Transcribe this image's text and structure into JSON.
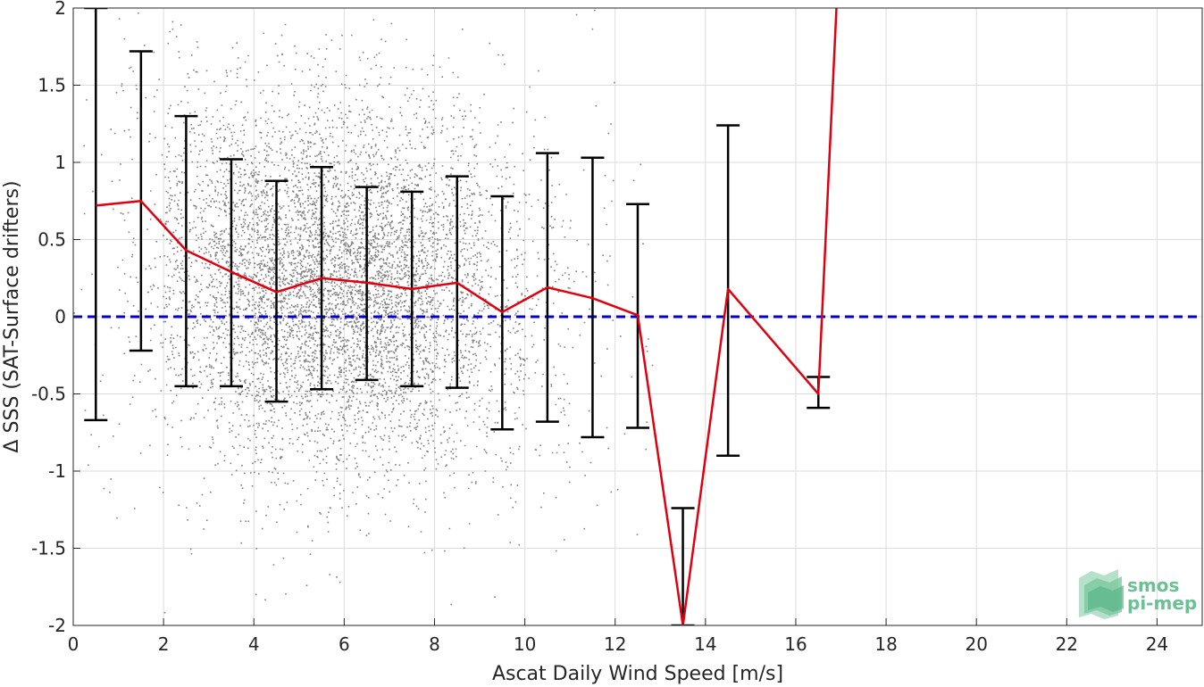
{
  "chart_data": {
    "type": "scatter",
    "xlabel": "Ascat Daily Wind Speed [m/s]",
    "ylabel": "Δ SSS (SAT-Surface drifters)",
    "xlim": [
      0,
      25
    ],
    "ylim": [
      -2,
      2
    ],
    "xticks": [
      0,
      2,
      4,
      6,
      8,
      10,
      12,
      14,
      16,
      18,
      20,
      22,
      24
    ],
    "yticks": [
      -2,
      -1.5,
      -1,
      -0.5,
      0,
      0.5,
      1,
      1.5,
      2
    ],
    "xtick_labels": [
      "0",
      "2",
      "4",
      "6",
      "8",
      "10",
      "12",
      "14",
      "16",
      "18",
      "20",
      "22",
      "24"
    ],
    "ytick_labels": [
      "-2",
      "-1.5",
      "-1",
      "-0.5",
      "0",
      "0.5",
      "1",
      "1.5",
      "2"
    ],
    "grid": true,
    "series": [
      {
        "kind": "scatter",
        "color": "#808080",
        "density_bins": [
          {
            "x": 0.5,
            "mean": 0.3,
            "sd": 0.9,
            "n": 30
          },
          {
            "x": 1.5,
            "mean": 0.45,
            "sd": 0.7,
            "n": 120
          },
          {
            "x": 2.5,
            "mean": 0.35,
            "sd": 0.65,
            "n": 450
          },
          {
            "x": 3.5,
            "mean": 0.25,
            "sd": 0.6,
            "n": 800
          },
          {
            "x": 4.5,
            "mean": 0.2,
            "sd": 0.6,
            "n": 1100
          },
          {
            "x": 5.5,
            "mean": 0.2,
            "sd": 0.62,
            "n": 1300
          },
          {
            "x": 6.5,
            "mean": 0.2,
            "sd": 0.58,
            "n": 1300
          },
          {
            "x": 7.5,
            "mean": 0.18,
            "sd": 0.58,
            "n": 1000
          },
          {
            "x": 8.5,
            "mean": 0.18,
            "sd": 0.6,
            "n": 600
          },
          {
            "x": 9.5,
            "mean": 0.1,
            "sd": 0.65,
            "n": 300
          },
          {
            "x": 10.5,
            "mean": 0.15,
            "sd": 0.7,
            "n": 130
          },
          {
            "x": 11.5,
            "mean": 0.1,
            "sd": 0.8,
            "n": 45
          },
          {
            "x": 12.5,
            "mean": 0.0,
            "sd": 0.6,
            "n": 15
          }
        ]
      },
      {
        "kind": "errorbar",
        "color": "#000000",
        "x": [
          0.5,
          1.5,
          2.5,
          3.5,
          4.5,
          5.5,
          6.5,
          7.5,
          8.5,
          9.5,
          10.5,
          11.5,
          12.5,
          13.5,
          14.5,
          16.5
        ],
        "lower": [
          -0.67,
          -0.22,
          -0.45,
          -0.45,
          -0.55,
          -0.47,
          -0.41,
          -0.45,
          -0.46,
          -0.73,
          -0.68,
          -0.78,
          -0.72,
          -2.0,
          -0.9,
          -0.59
        ],
        "upper": [
          2.0,
          1.72,
          1.3,
          1.02,
          0.88,
          0.97,
          0.84,
          0.81,
          0.91,
          0.78,
          1.06,
          1.03,
          0.73,
          -1.24,
          1.24,
          -0.39
        ]
      },
      {
        "kind": "line",
        "color": "#e0000f",
        "x": [
          0.5,
          1.5,
          2.5,
          3.5,
          4.5,
          5.5,
          6.5,
          7.5,
          8.5,
          9.5,
          10.5,
          11.5,
          12.5,
          13.5,
          14.5,
          16.5,
          16.9
        ],
        "y": [
          0.72,
          0.75,
          0.43,
          0.29,
          0.16,
          0.25,
          0.22,
          0.18,
          0.22,
          0.03,
          0.19,
          0.12,
          0.01,
          -2.0,
          0.18,
          -0.5,
          2.0
        ]
      },
      {
        "kind": "hline",
        "color": "#0000d0",
        "style": "dashed",
        "y": 0
      }
    ]
  },
  "logo": {
    "line1": "smos",
    "line2": "pi-mep",
    "color": "#6fbf96"
  }
}
